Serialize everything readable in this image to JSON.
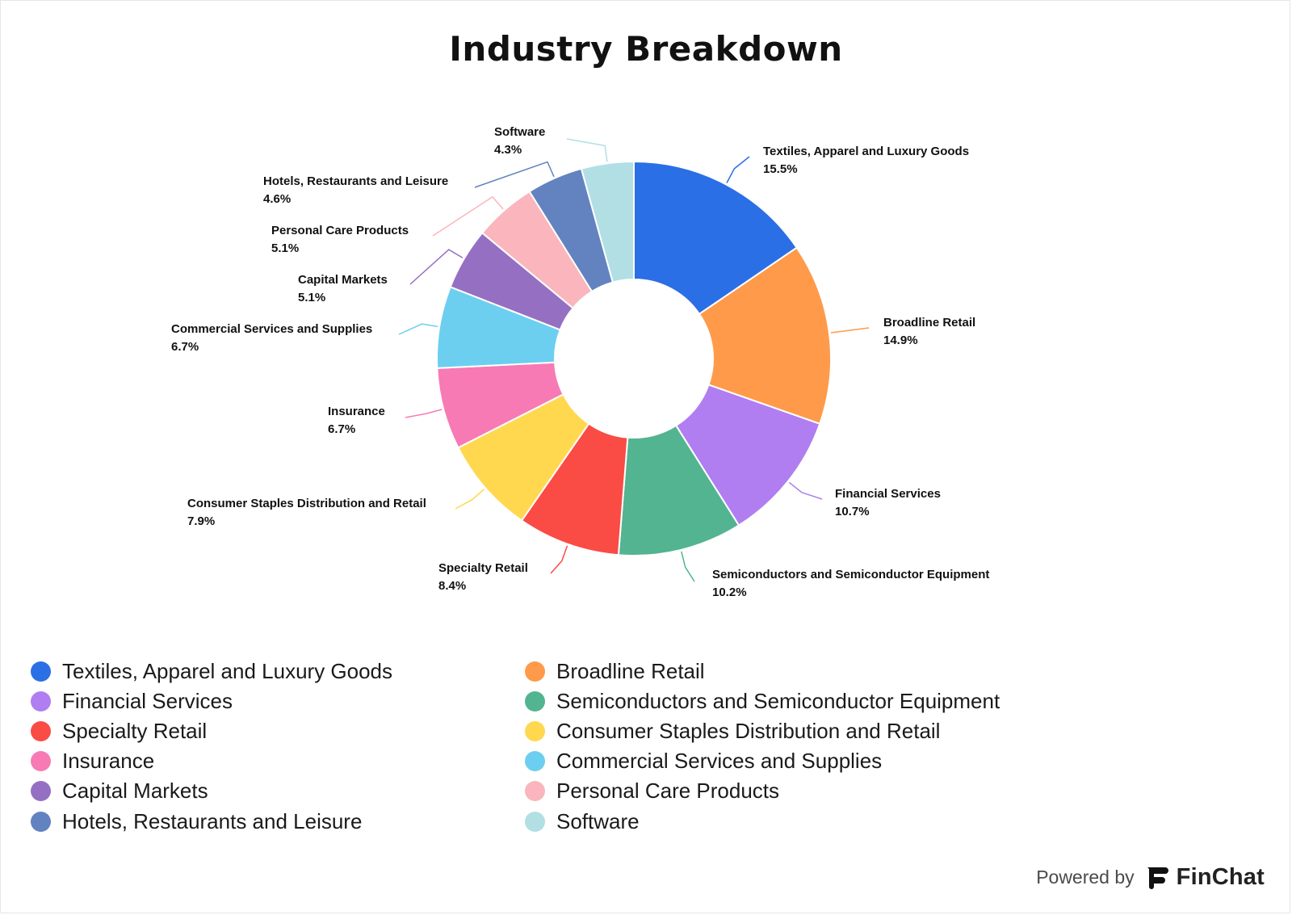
{
  "title": "Industry Breakdown",
  "footer": {
    "powered_by": "Powered by",
    "brand": "FinChat"
  },
  "icons": {
    "brand_logo": "finchat-logo-icon"
  },
  "chart_data": {
    "type": "pie",
    "donut": true,
    "title": "Industry Breakdown",
    "legend_position": "bottom",
    "slices": [
      {
        "label": "Textiles, Apparel and Luxury Goods",
        "value": 15.5,
        "display": "15.5%",
        "color": "#2b6fe6"
      },
      {
        "label": "Broadline Retail",
        "value": 14.9,
        "display": "14.9%",
        "color": "#ff9a4a"
      },
      {
        "label": "Financial Services",
        "value": 10.7,
        "display": "10.7%",
        "color": "#b07ef0"
      },
      {
        "label": "Semiconductors and Semiconductor Equipment",
        "value": 10.2,
        "display": "10.2%",
        "color": "#52b490"
      },
      {
        "label": "Specialty Retail",
        "value": 8.4,
        "display": "8.4%",
        "color": "#fa4b45"
      },
      {
        "label": "Consumer Staples Distribution and Retail",
        "value": 7.9,
        "display": "7.9%",
        "color": "#ffd84f"
      },
      {
        "label": "Insurance",
        "value": 6.7,
        "display": "6.7%",
        "color": "#f77ab4"
      },
      {
        "label": "Commercial Services and Supplies",
        "value": 6.7,
        "display": "6.7%",
        "color": "#6ccff0"
      },
      {
        "label": "Capital Markets",
        "value": 5.1,
        "display": "5.1%",
        "color": "#9570c2"
      },
      {
        "label": "Personal Care Products",
        "value": 5.1,
        "display": "5.1%",
        "color": "#fab6bc"
      },
      {
        "label": "Hotels, Restaurants and Leisure",
        "value": 4.6,
        "display": "4.6%",
        "color": "#6283bf"
      },
      {
        "label": "Software",
        "value": 4.3,
        "display": "4.3%",
        "color": "#b1dfe4"
      }
    ]
  }
}
